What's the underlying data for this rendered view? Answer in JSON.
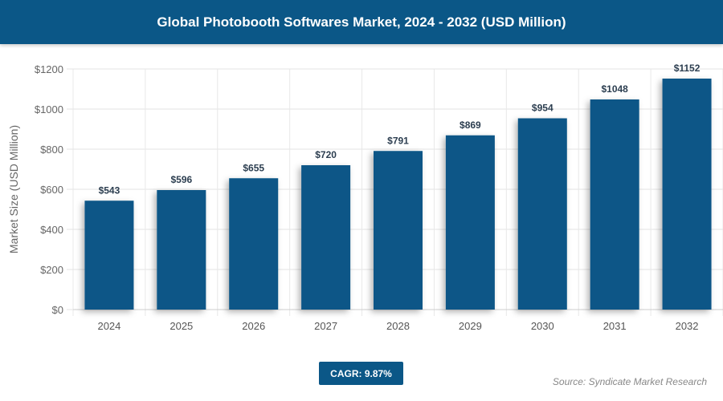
{
  "header": {
    "title": "Global Photobooth Softwares Market, 2024 - 2032 (USD Million)"
  },
  "chart_data": {
    "type": "bar",
    "title": "Global Photobooth Softwares Market, 2024 - 2032 (USD Million)",
    "xlabel": "",
    "ylabel": "Market Size (USD Million)",
    "categories": [
      "2024",
      "2025",
      "2026",
      "2027",
      "2028",
      "2029",
      "2030",
      "2031",
      "2032"
    ],
    "values": [
      543,
      596,
      655,
      720,
      791,
      869,
      954,
      1048,
      1152
    ],
    "data_labels": [
      "$543",
      "$596",
      "$655",
      "$720",
      "$791",
      "$869",
      "$954",
      "$1048",
      "$1152"
    ],
    "ylim": [
      0,
      1200
    ],
    "yticks": [
      0,
      200,
      400,
      600,
      800,
      1000,
      1200
    ],
    "ytick_labels": [
      "$0",
      "$200",
      "$400",
      "$600",
      "$800",
      "$1000",
      "$1200"
    ],
    "grid": true,
    "bar_color": "#0b5787"
  },
  "footer": {
    "cagr": "CAGR: 9.87%",
    "source": "Source: Syndicate Market Research"
  }
}
